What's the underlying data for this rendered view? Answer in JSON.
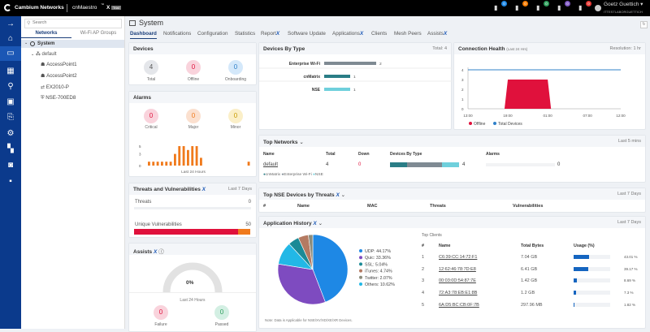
{
  "topbar": {
    "brand": "Cambium Networks",
    "product": "cnMaestro",
    "product_tm": "™",
    "edition": "X",
    "edition_badge": "Trial",
    "notifications": [
      {
        "icon": "megaphone-icon",
        "count": "0",
        "color": "#1e88e5"
      },
      {
        "icon": "bell-icon",
        "count": "0",
        "color": "#f57c00"
      },
      {
        "icon": "device-check-icon",
        "count": "0",
        "color": "#2e9e5b"
      },
      {
        "icon": "clipboard-icon",
        "count": "0",
        "color": "#7e57c2"
      },
      {
        "icon": "alarm-icon",
        "count": "0",
        "color": "#e53935"
      }
    ],
    "user": {
      "name": "Goetz Guettich ▾",
      "org": "ITTESTLABORGUETTICH"
    }
  },
  "sidebar": {
    "search_placeholder": "Search",
    "tabs": [
      "Networks",
      "Wi-Fi AP Groups"
    ],
    "tree": {
      "root": "System",
      "network": "default",
      "devices": [
        "AccessPoint1",
        "AccessPoint2",
        "EX2010-P",
        "NSE-700ED8"
      ]
    }
  },
  "page": {
    "title": "System",
    "tabs": [
      "Dashboard",
      "Notifications",
      "Configuration",
      "Statistics",
      "Report",
      "Software Update",
      "Applications",
      "Clients",
      "Mesh Peers",
      "Assists"
    ],
    "active_tab": "Dashboard"
  },
  "devices": {
    "title": "Devices",
    "total": {
      "value": "4",
      "label": "Total"
    },
    "offline": {
      "value": "0",
      "label": "Offline"
    },
    "onboarding": {
      "value": "0",
      "label": "Onboarding"
    }
  },
  "alarms": {
    "title": "Alarms",
    "critical": {
      "value": "0",
      "label": "Critical"
    },
    "major": {
      "value": "0",
      "label": "Major"
    },
    "minor": {
      "value": "0",
      "label": "Minor"
    },
    "footer": "Last 24 Hours"
  },
  "threats": {
    "title": "Threats and Vulnerabilities",
    "range": "Last 7 Days",
    "threats_label": "Threats",
    "threats_value": "0",
    "vuln_label": "Unique Vulnerabilities",
    "vuln_value": "50"
  },
  "assists": {
    "title": "Assists",
    "gauge_value": "0%",
    "footer": "Last 24 Hours",
    "failure": {
      "value": "0",
      "label": "Failure"
    },
    "passed": {
      "value": "0",
      "label": "Passed"
    }
  },
  "devices_by_type": {
    "title": "Devices By Type",
    "total": "Total: 4"
  },
  "connection_health": {
    "title": "Connection Health",
    "subtitle": "(Last 24 Hrs)",
    "resolution": "Resolution: 1 hr",
    "legend": [
      "Offline",
      "Total Devices"
    ]
  },
  "top_networks": {
    "title": "Top Networks",
    "range": "Last 5 mins",
    "columns": [
      "Name",
      "Total",
      "Down",
      "Devices By Type",
      "Alarms"
    ],
    "row": {
      "name": "default",
      "total": "4",
      "down": "0",
      "types_total": "4",
      "alarms": "0"
    },
    "legend": [
      "cnMatrix",
      "Enterprise Wi-Fi",
      "NSE"
    ]
  },
  "top_nse": {
    "title": "Top NSE Devices by Threats",
    "range": "Last 7 Days",
    "columns": [
      "#",
      "Name",
      "MAC",
      "Threats",
      "Vulnerabilities"
    ]
  },
  "app_history": {
    "title": "Application History",
    "range": "Last 7 Days",
    "note": "Note: Data is Applicable for NSE/XV/XD/XE/XR Devices.",
    "top_clients_title": "Top Clients",
    "columns": [
      "#",
      "Name",
      "Total Bytes",
      "Usage (%)"
    ],
    "clients": [
      {
        "n": "1",
        "name": "C6:39:CC:14:72:F1",
        "bytes": "7.04 GB",
        "usage": "43.01 %",
        "pct": 43.01
      },
      {
        "n": "2",
        "name": "12:62:46:78:7D:E8",
        "bytes": "6.41 GB",
        "usage": "39.17 %",
        "pct": 39.17
      },
      {
        "n": "3",
        "name": "00:03:0D:54:87:7E",
        "bytes": "1.42 GB",
        "usage": "8.69 %",
        "pct": 8.69
      },
      {
        "n": "4",
        "name": "72:A3:78:EB:E1:8B",
        "bytes": "1.2 GB",
        "usage": "7.3 %",
        "pct": 7.3
      },
      {
        "n": "5",
        "name": "6A:D5:BC:CB:0F:7B",
        "bytes": "297.96 MB",
        "usage": "1.82 %",
        "pct": 1.82
      }
    ]
  },
  "chart_data": [
    {
      "type": "bar",
      "id": "devices-by-type",
      "categories": [
        "Enterprise Wi-Fi",
        "cnMatrix",
        "NSE"
      ],
      "values": [
        2,
        1,
        1
      ],
      "colors": [
        "#7f8a93",
        "#2a7d86",
        "#6fd0dc"
      ]
    },
    {
      "type": "bar",
      "id": "alarms-24h",
      "xlabel": "Last 24 Hours",
      "yticks": [
        "0",
        "3",
        "5"
      ],
      "ylim": [
        0,
        5
      ],
      "values": [
        1,
        1,
        1,
        1,
        1,
        1,
        3,
        5,
        5,
        4,
        5,
        5,
        2,
        0,
        0,
        0,
        0,
        0,
        0,
        0,
        0,
        0,
        0,
        1
      ],
      "color": "#f07a1c"
    },
    {
      "type": "area",
      "id": "connection-health",
      "xticks": [
        "13:00",
        "19:00",
        "01:00",
        "07:00",
        "12:00"
      ],
      "yticks": [
        "0",
        "1",
        "2",
        "3",
        "4"
      ],
      "ylim": [
        0,
        4
      ],
      "series": [
        {
          "name": "Offline",
          "color": "#e0113c",
          "x": [
            5.5,
            6,
            7,
            8,
            9,
            10,
            11,
            12,
            12.5
          ],
          "y": [
            0,
            3,
            3,
            3,
            3,
            3,
            3,
            3,
            0
          ]
        },
        {
          "name": "Total Devices",
          "color": "#2f80c9",
          "x": [
            0,
            23
          ],
          "y": [
            4,
            4
          ]
        }
      ]
    },
    {
      "type": "pie",
      "id": "application-history",
      "series": [
        {
          "name": "UDP: 44.17%",
          "value": 44.17,
          "color": "#1e88e5"
        },
        {
          "name": "Quic: 33.36%",
          "value": 33.36,
          "color": "#7e4bc0"
        },
        {
          "name": "Others: 10.62%",
          "value": 10.62,
          "color": "#22b8e6"
        },
        {
          "name": "SSL: 5.04%",
          "value": 5.04,
          "color": "#1b8a96"
        },
        {
          "name": "iTunes: 4.74%",
          "value": 4.74,
          "color": "#b47a62"
        },
        {
          "name": "Twitter: 2.07%",
          "value": 2.07,
          "color": "#8c8c7c"
        }
      ],
      "legend_order": [
        0,
        1,
        3,
        4,
        5,
        2
      ]
    }
  ],
  "colors": {
    "accent": "#0b3a8c",
    "critical": "#e0113c",
    "warning": "#f07a1c"
  }
}
